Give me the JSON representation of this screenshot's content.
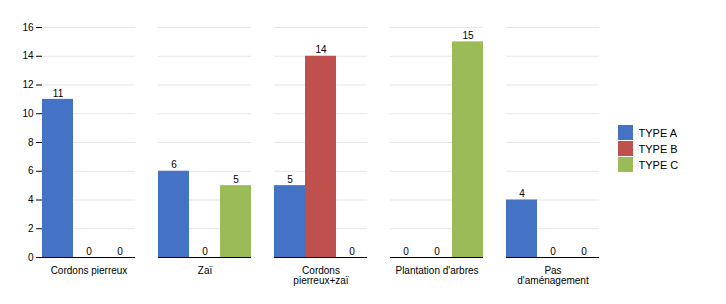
{
  "chart_data": {
    "type": "bar",
    "categories": [
      "Cordons pierreux",
      "Zaï",
      "Cordons\npierreux+zaï",
      "Plantation d'arbres",
      "Pas\nd'aménagement"
    ],
    "series": [
      {
        "name": "TYPE A",
        "color": "#4472C4",
        "values": [
          11,
          6,
          5,
          0,
          4
        ]
      },
      {
        "name": "TYPE B",
        "color": "#C0504D",
        "values": [
          0,
          0,
          14,
          0,
          0
        ]
      },
      {
        "name": "TYPE C",
        "color": "#9BBB59",
        "values": [
          0,
          5,
          0,
          15,
          0
        ]
      }
    ],
    "ylim": [
      0,
      16
    ],
    "yticks": [
      0,
      2,
      4,
      6,
      8,
      10,
      12,
      14,
      16
    ],
    "grid": true,
    "legend": "right",
    "data_labels": true
  }
}
